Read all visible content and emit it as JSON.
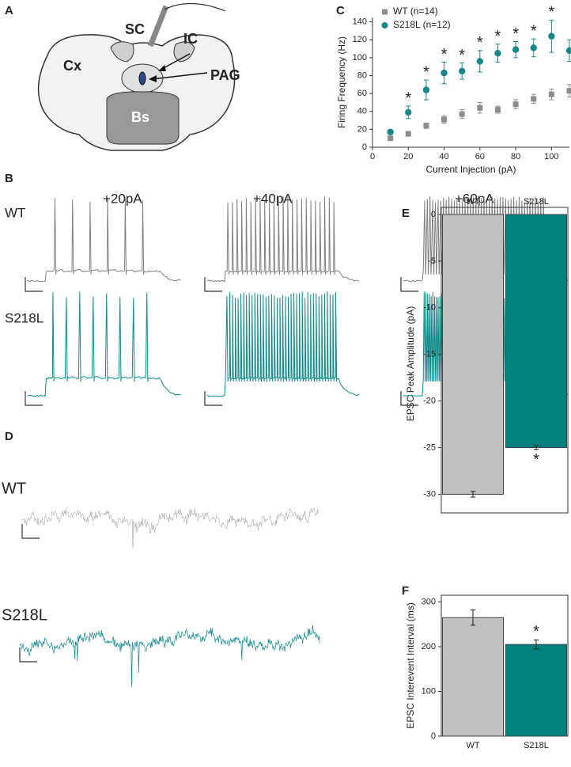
{
  "panels": [
    "A",
    "B",
    "C",
    "D",
    "E",
    "F"
  ],
  "diagram": {
    "labels": [
      "SC",
      "IC",
      "Cx",
      "PAG",
      "Bs"
    ]
  },
  "traces": {
    "steps": [
      "+20pA",
      "+40pA",
      "+60pA"
    ],
    "groups": [
      "WT",
      "S218L"
    ],
    "spontaneous_groups": [
      "WT",
      "S218L"
    ]
  },
  "chart_data": [
    {
      "type": "scatter",
      "xlabel": "Current Injection (pA)",
      "ylabel": "Firing Frequency (Hz)",
      "x": [
        10,
        20,
        30,
        40,
        50,
        60,
        70,
        80,
        90,
        100,
        110
      ],
      "xlim": [
        0,
        110
      ],
      "xticks": [
        0,
        20,
        40,
        60,
        80,
        100
      ],
      "ylim": [
        0,
        145
      ],
      "yticks": [
        0,
        20,
        40,
        60,
        80,
        100,
        120,
        140
      ],
      "legend": "top-left",
      "series": [
        {
          "name": "WT (n=14)",
          "color": "#8c8c8c",
          "marker": "square",
          "values": [
            10,
            15,
            24,
            31,
            37,
            44,
            42,
            48,
            54,
            59,
            63
          ],
          "errors": [
            2,
            2,
            3,
            4,
            5,
            6,
            4,
            5,
            5,
            6,
            7
          ]
        },
        {
          "name": "S218L (n=12)",
          "color": "#17878a",
          "marker": "circle",
          "values": [
            17,
            39,
            64,
            83,
            85,
            96,
            105,
            109,
            111,
            124,
            108
          ],
          "errors": [
            2,
            7,
            11,
            12,
            9,
            12,
            10,
            9,
            10,
            18,
            12
          ]
        }
      ],
      "annotations": [
        {
          "text": "*",
          "x": 20
        },
        {
          "text": "*",
          "x": 30
        },
        {
          "text": "*",
          "x": 40
        },
        {
          "text": "*",
          "x": 50
        },
        {
          "text": "*",
          "x": 60
        },
        {
          "text": "*",
          "x": 70
        },
        {
          "text": "*",
          "x": 80
        },
        {
          "text": "*",
          "x": 90
        },
        {
          "text": "*",
          "x": 100
        }
      ]
    },
    {
      "type": "bar",
      "ylabel": "EPSC Peak Amplitude (pA)",
      "xaxis_position": "top",
      "categories": [
        "WT",
        "S218L"
      ],
      "values": [
        -30,
        -25
      ],
      "errors": [
        0.3,
        0.2
      ],
      "colors": [
        "#c0c0c0",
        "#007f7f"
      ],
      "ylim": [
        -32,
        0
      ],
      "yticks": [
        0,
        -5,
        -10,
        -15,
        -20,
        -25,
        -30
      ],
      "annotations": [
        {
          "text": "*",
          "x": "S218L"
        }
      ]
    },
    {
      "type": "bar",
      "ylabel": "EPSC Interevent Interval (ms)",
      "xaxis_position": "bottom",
      "categories": [
        "WT",
        "S218L"
      ],
      "values": [
        265,
        205
      ],
      "errors": [
        17,
        10
      ],
      "colors": [
        "#c0c0c0",
        "#007f7f"
      ],
      "ylim": [
        0,
        315
      ],
      "yticks": [
        0,
        100,
        200,
        300
      ],
      "annotations": [
        {
          "text": "*",
          "x": "S218L"
        }
      ]
    }
  ]
}
